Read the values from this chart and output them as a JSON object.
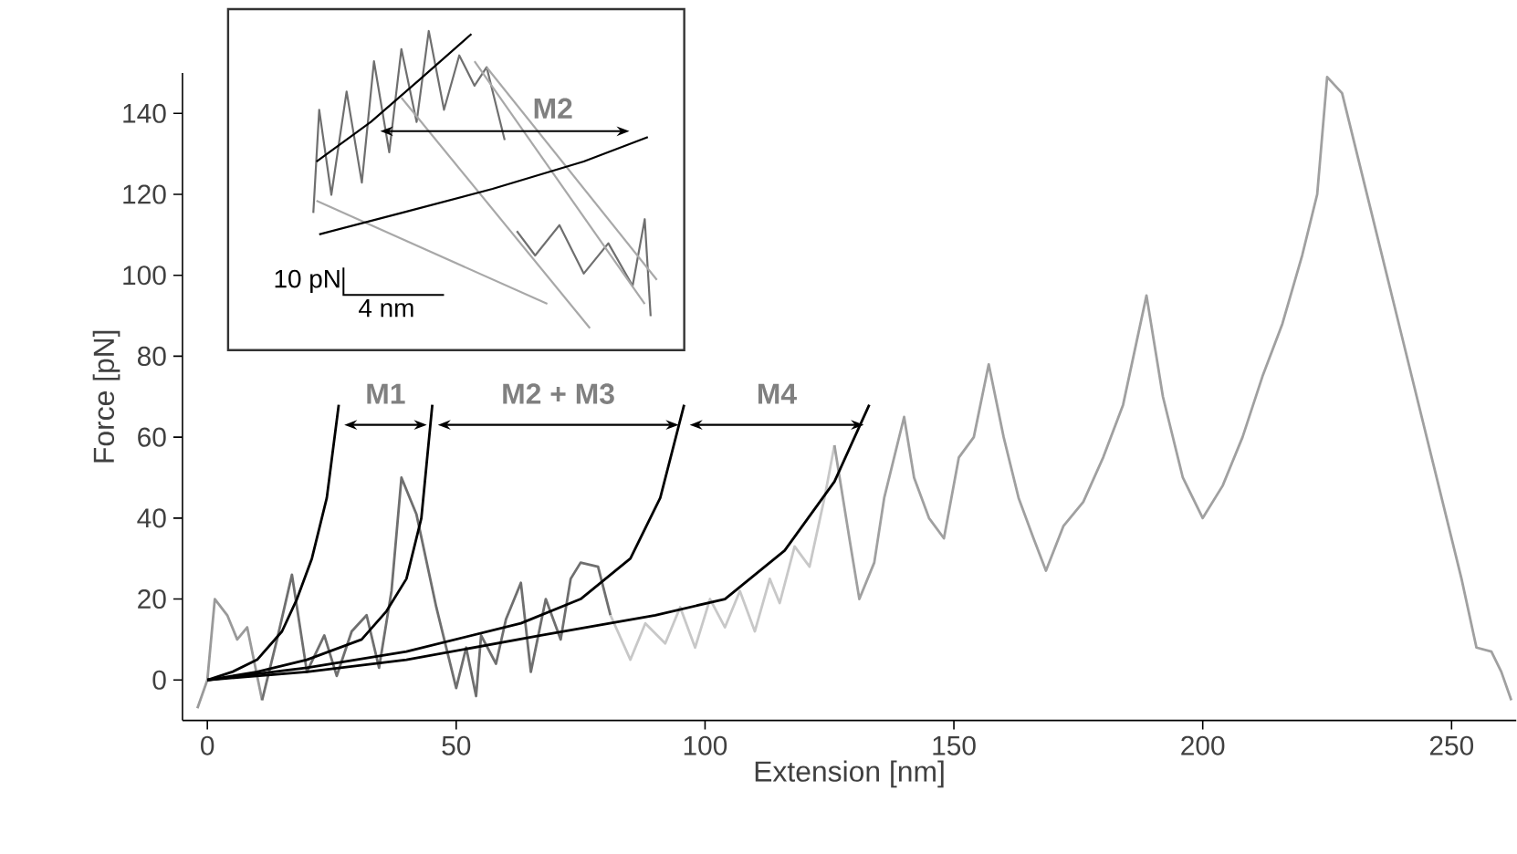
{
  "chart_data": [
    {
      "type": "line",
      "xlabel": "Extension [nm]",
      "ylabel": "Force [pN]",
      "xlim": [
        -5,
        263
      ],
      "ylim": [
        -10,
        150
      ],
      "xticks": [
        0,
        50,
        100,
        150,
        200,
        250
      ],
      "yticks": [
        0,
        20,
        40,
        60,
        80,
        100,
        120,
        140
      ],
      "series": [
        {
          "color": "#9a9a9a",
          "x": [
            -2,
            0,
            1.5,
            4,
            6,
            8,
            11
          ],
          "values": [
            -7,
            0,
            20,
            16,
            10,
            13,
            -5
          ]
        },
        {
          "color": "#6f6f6f",
          "x": [
            11,
            14,
            17,
            20,
            23.5,
            26,
            29,
            32,
            34.5,
            37,
            39,
            42,
            46,
            50,
            52,
            54,
            55,
            58,
            60,
            63,
            65,
            68,
            71,
            73,
            75,
            78.5,
            81
          ],
          "values": [
            -5,
            10,
            26,
            2,
            11,
            1,
            12,
            16,
            3,
            22,
            50,
            41,
            18,
            -2,
            8,
            -4,
            11,
            4,
            15,
            24,
            2,
            20,
            10,
            25,
            29,
            28,
            16
          ]
        },
        {
          "color": "#c8c8c8",
          "x": [
            81,
            85,
            88,
            92,
            95,
            98,
            101,
            104,
            107,
            110,
            113,
            115,
            118,
            121,
            124,
            126
          ],
          "values": [
            16,
            5,
            14,
            9,
            18,
            8,
            20,
            13,
            22,
            12,
            25,
            19,
            33,
            28,
            45,
            58
          ]
        },
        {
          "color": "#a0a0a0",
          "x": [
            126,
            129,
            131,
            134,
            136,
            140,
            142,
            145,
            148,
            151,
            154,
            157,
            160,
            163,
            166,
            168.5,
            172,
            176,
            180,
            184,
            188.7,
            192,
            196,
            200,
            204,
            208,
            212,
            216,
            220,
            223,
            225,
            228,
            234,
            240,
            246,
            252,
            255,
            258,
            260,
            262
          ],
          "values": [
            58,
            35,
            20,
            29,
            45,
            65,
            50,
            40,
            35,
            55,
            60,
            78,
            60,
            45,
            35,
            27,
            38,
            44,
            55,
            68,
            95,
            70,
            50,
            40,
            48,
            60,
            75,
            88,
            105,
            120,
            149,
            145,
            115,
            85,
            55,
            25,
            8,
            7,
            2,
            -5
          ]
        },
        {
          "color": "#000000",
          "x": [
            0,
            5,
            10,
            15,
            18,
            21,
            24,
            26.4
          ],
          "values": [
            0,
            2,
            5,
            12,
            20,
            30,
            45,
            68
          ]
        },
        {
          "color": "#000000",
          "x": [
            0,
            10,
            20,
            31,
            36,
            40,
            43,
            45.2
          ],
          "values": [
            0,
            2,
            5,
            10,
            17,
            25,
            40,
            68
          ]
        },
        {
          "color": "#000000",
          "x": [
            0,
            20,
            40,
            63,
            75,
            85,
            91,
            95.8
          ],
          "values": [
            0,
            3,
            7,
            14,
            20,
            30,
            45,
            68
          ]
        },
        {
          "color": "#000000",
          "x": [
            0,
            20,
            40,
            67,
            90,
            104,
            116,
            126,
            133
          ],
          "values": [
            0,
            2,
            5,
            11,
            16,
            20,
            32,
            49,
            68
          ]
        }
      ],
      "annotations": [
        "M1",
        "M2 + M3",
        "M4"
      ]
    },
    {
      "type": "other",
      "annotations": [
        "M2",
        "10 pN",
        "4 nm"
      ]
    }
  ]
}
